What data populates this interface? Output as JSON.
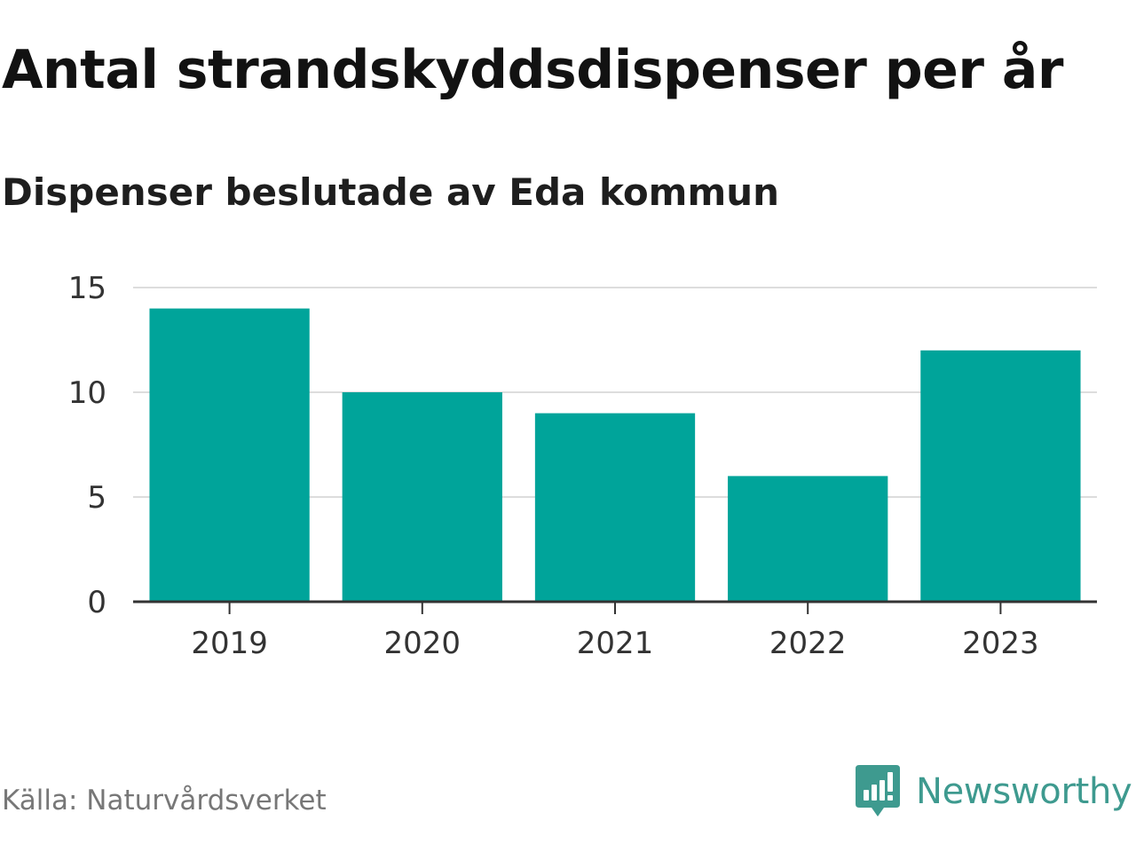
{
  "title": "Antal strandskyddsdispenser per år",
  "subtitle": "Dispenser beslutade av Eda kommun",
  "source": "Källa: Naturvårdsverket",
  "brand": {
    "name": "Newsworthy",
    "icon": "newsworthy-logo-icon"
  },
  "colors": {
    "bar": "#00a49a",
    "grid": "#dddddd",
    "axis": "#333333",
    "brand": "#3e9a8f"
  },
  "chart_data": {
    "type": "bar",
    "title": "Antal strandskyddsdispenser per år",
    "subtitle": "Dispenser beslutade av Eda kommun",
    "categories": [
      "2019",
      "2020",
      "2021",
      "2022",
      "2023"
    ],
    "values": [
      14,
      10,
      9,
      6,
      12
    ],
    "xlabel": "",
    "ylabel": "",
    "ylim": [
      0,
      15
    ],
    "yticks": [
      "0",
      "5",
      "10",
      "15"
    ],
    "grid": true,
    "legend": "none"
  }
}
